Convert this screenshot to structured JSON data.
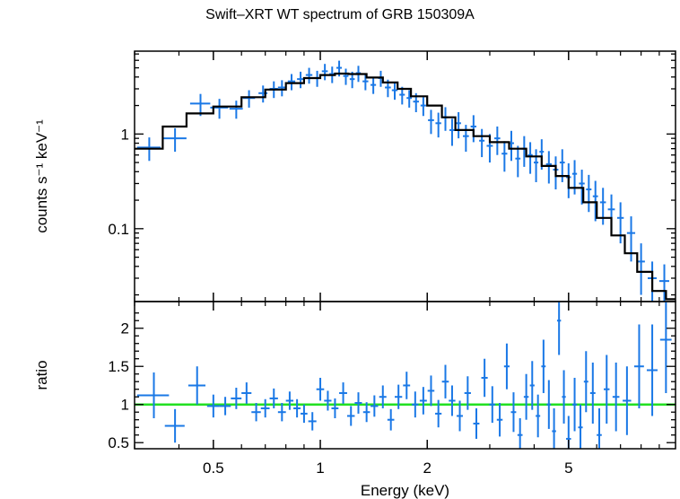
{
  "title": "Swift–XRT WT spectrum of GRB 150309A",
  "chart_data": [
    {
      "type": "scatter",
      "panel": "spectrum",
      "xlabel": "",
      "ylabel": "counts s⁻¹ keV⁻¹",
      "xscale": "log",
      "yscale": "log",
      "xlim": [
        0.3,
        10
      ],
      "ylim": [
        0.017,
        7.5
      ],
      "y_ticks": [
        0.1,
        1
      ],
      "y_tick_labels": [
        "0.1",
        "1"
      ],
      "grid": false,
      "colors": {
        "data": "#1a78e6",
        "model": "#000000"
      },
      "series": [
        {
          "role": "data",
          "x": [
            0.33,
            0.39,
            0.46,
            0.52,
            0.58,
            0.63,
            0.69,
            0.74,
            0.78,
            0.83,
            0.88,
            0.93,
            0.98,
            1.03,
            1.08,
            1.13,
            1.18,
            1.23,
            1.28,
            1.34,
            1.41,
            1.48,
            1.55,
            1.62,
            1.7,
            1.78,
            1.86,
            1.95,
            2.05,
            2.15,
            2.25,
            2.35,
            2.45,
            2.57,
            2.7,
            2.85,
            3.0,
            3.15,
            3.3,
            3.45,
            3.6,
            3.75,
            3.9,
            4.05,
            4.2,
            4.4,
            4.6,
            4.8,
            5.0,
            5.2,
            5.45,
            5.7,
            5.95,
            6.25,
            6.6,
            7.0,
            7.5,
            8.0,
            8.6,
            9.3
          ],
          "y": [
            0.72,
            0.9,
            2.1,
            1.9,
            1.85,
            2.4,
            2.7,
            3.0,
            3.1,
            3.6,
            3.8,
            4.2,
            3.9,
            4.6,
            4.3,
            5.0,
            4.1,
            3.8,
            4.4,
            3.6,
            3.3,
            3.9,
            3.1,
            2.9,
            2.6,
            2.4,
            2.2,
            2.0,
            1.4,
            1.3,
            1.5,
            1.1,
            1.3,
            0.95,
            1.2,
            0.85,
            0.75,
            0.9,
            0.62,
            0.8,
            0.55,
            0.7,
            0.6,
            0.5,
            0.65,
            0.48,
            0.42,
            0.5,
            0.35,
            0.38,
            0.3,
            0.26,
            0.22,
            0.19,
            0.16,
            0.13,
            0.09,
            0.045,
            0.03,
            0.028
          ],
          "xerr": [
            0.025,
            0.03,
            0.03,
            0.03,
            0.025,
            0.025,
            0.02,
            0.02,
            0.02,
            0.02,
            0.02,
            0.02,
            0.02,
            0.02,
            0.02,
            0.02,
            0.02,
            0.02,
            0.02,
            0.025,
            0.025,
            0.025,
            0.03,
            0.03,
            0.03,
            0.03,
            0.035,
            0.035,
            0.04,
            0.04,
            0.04,
            0.04,
            0.04,
            0.05,
            0.05,
            0.05,
            0.06,
            0.06,
            0.06,
            0.06,
            0.06,
            0.06,
            0.06,
            0.06,
            0.06,
            0.08,
            0.08,
            0.08,
            0.08,
            0.08,
            0.1,
            0.1,
            0.1,
            0.12,
            0.15,
            0.15,
            0.2,
            0.2,
            0.25,
            0.3
          ],
          "yerr": [
            0.2,
            0.25,
            0.55,
            0.45,
            0.4,
            0.5,
            0.55,
            0.6,
            0.6,
            0.7,
            0.75,
            0.8,
            0.75,
            0.9,
            0.85,
            0.95,
            0.8,
            0.75,
            0.85,
            0.7,
            0.65,
            0.75,
            0.65,
            0.6,
            0.55,
            0.5,
            0.5,
            0.45,
            0.4,
            0.38,
            0.42,
            0.35,
            0.4,
            0.3,
            0.38,
            0.28,
            0.25,
            0.3,
            0.22,
            0.28,
            0.2,
            0.25,
            0.22,
            0.19,
            0.23,
            0.18,
            0.16,
            0.19,
            0.14,
            0.15,
            0.12,
            0.11,
            0.1,
            0.08,
            0.07,
            0.06,
            0.045,
            0.025,
            0.015,
            0.014
          ]
        },
        {
          "role": "model",
          "x": [
            0.3,
            0.36,
            0.36,
            0.42,
            0.42,
            0.5,
            0.5,
            0.6,
            0.6,
            0.7,
            0.7,
            0.8,
            0.8,
            0.9,
            0.9,
            1.0,
            1.0,
            1.1,
            1.1,
            1.2,
            1.2,
            1.35,
            1.35,
            1.5,
            1.5,
            1.65,
            1.65,
            1.8,
            1.8,
            2.0,
            2.0,
            2.2,
            2.2,
            2.4,
            2.4,
            2.7,
            2.7,
            3.0,
            3.0,
            3.4,
            3.4,
            3.8,
            3.8,
            4.2,
            4.2,
            4.6,
            4.6,
            5.0,
            5.0,
            5.5,
            5.5,
            6.0,
            6.0,
            6.6,
            6.6,
            7.2,
            7.2,
            7.8,
            7.8,
            8.6,
            8.6,
            9.4,
            9.4,
            10.0
          ],
          "y": [
            0.7,
            0.7,
            1.2,
            1.2,
            1.65,
            1.65,
            1.95,
            1.95,
            2.45,
            2.45,
            2.95,
            2.95,
            3.45,
            3.45,
            3.9,
            3.9,
            4.2,
            4.2,
            4.35,
            4.35,
            4.3,
            4.3,
            3.95,
            3.95,
            3.5,
            3.5,
            3.0,
            3.0,
            2.5,
            2.5,
            2.0,
            2.0,
            1.5,
            1.5,
            1.1,
            1.1,
            0.95,
            0.95,
            0.82,
            0.82,
            0.7,
            0.7,
            0.58,
            0.58,
            0.46,
            0.46,
            0.36,
            0.36,
            0.27,
            0.27,
            0.19,
            0.19,
            0.13,
            0.13,
            0.085,
            0.085,
            0.055,
            0.055,
            0.035,
            0.035,
            0.022,
            0.022,
            0.018,
            0.018
          ]
        }
      ]
    },
    {
      "type": "scatter",
      "panel": "ratio",
      "xlabel": "Energy (keV)",
      "ylabel": "ratio",
      "xscale": "log",
      "yscale": "linear",
      "xlim": [
        0.3,
        10
      ],
      "ylim": [
        0.42,
        2.35
      ],
      "x_ticks": [
        0.5,
        1,
        2,
        5
      ],
      "x_tick_labels": [
        "0.5",
        "1",
        "2",
        "5"
      ],
      "y_ticks": [
        0.5,
        1,
        1.5,
        2
      ],
      "y_tick_labels": [
        "0.5",
        "1",
        "1.5",
        "2"
      ],
      "reference_line": {
        "y": 1,
        "color": "#22e022"
      },
      "grid": false,
      "colors": {
        "data": "#1a78e6"
      },
      "series": [
        {
          "role": "data",
          "x": [
            0.34,
            0.39,
            0.45,
            0.5,
            0.54,
            0.58,
            0.62,
            0.66,
            0.7,
            0.74,
            0.78,
            0.82,
            0.86,
            0.9,
            0.95,
            1.0,
            1.05,
            1.1,
            1.16,
            1.22,
            1.28,
            1.35,
            1.42,
            1.5,
            1.58,
            1.66,
            1.75,
            1.85,
            1.95,
            2.05,
            2.15,
            2.25,
            2.35,
            2.47,
            2.6,
            2.75,
            2.9,
            3.05,
            3.2,
            3.35,
            3.5,
            3.65,
            3.8,
            3.95,
            4.1,
            4.25,
            4.4,
            4.55,
            4.7,
            4.85,
            5.0,
            5.2,
            5.4,
            5.6,
            5.85,
            6.1,
            6.4,
            6.8,
            7.3,
            7.9,
            8.6,
            9.4
          ],
          "y": [
            1.12,
            0.72,
            1.25,
            0.98,
            0.98,
            1.08,
            1.15,
            0.9,
            0.95,
            1.08,
            0.9,
            1.05,
            0.95,
            0.88,
            0.78,
            1.2,
            1.05,
            0.95,
            1.15,
            0.85,
            1.02,
            0.9,
            0.98,
            1.1,
            0.8,
            1.1,
            1.25,
            1.0,
            1.05,
            1.18,
            0.88,
            1.3,
            1.05,
            0.85,
            1.15,
            0.75,
            1.35,
            1.0,
            0.8,
            1.5,
            0.9,
            0.6,
            1.1,
            1.25,
            0.85,
            1.5,
            1.0,
            0.65,
            2.1,
            1.1,
            0.55,
            1.0,
            0.7,
            1.3,
            1.15,
            0.6,
            1.2,
            1.1,
            1.05,
            1.5,
            1.45,
            1.85
          ],
          "xerr": [
            0.035,
            0.025,
            0.025,
            0.02,
            0.02,
            0.02,
            0.02,
            0.02,
            0.02,
            0.02,
            0.02,
            0.02,
            0.02,
            0.02,
            0.025,
            0.025,
            0.025,
            0.025,
            0.03,
            0.03,
            0.03,
            0.03,
            0.035,
            0.035,
            0.035,
            0.04,
            0.04,
            0.04,
            0.045,
            0.045,
            0.045,
            0.05,
            0.05,
            0.05,
            0.055,
            0.055,
            0.06,
            0.06,
            0.06,
            0.06,
            0.06,
            0.06,
            0.06,
            0.06,
            0.06,
            0.06,
            0.06,
            0.06,
            0.06,
            0.06,
            0.08,
            0.08,
            0.08,
            0.08,
            0.1,
            0.1,
            0.12,
            0.15,
            0.2,
            0.25,
            0.3,
            0.35
          ],
          "yerr": [
            0.3,
            0.22,
            0.25,
            0.15,
            0.12,
            0.14,
            0.14,
            0.12,
            0.12,
            0.13,
            0.12,
            0.12,
            0.12,
            0.12,
            0.12,
            0.15,
            0.13,
            0.13,
            0.14,
            0.13,
            0.14,
            0.13,
            0.14,
            0.15,
            0.14,
            0.16,
            0.18,
            0.17,
            0.18,
            0.2,
            0.18,
            0.22,
            0.2,
            0.2,
            0.22,
            0.2,
            0.25,
            0.24,
            0.22,
            0.3,
            0.26,
            0.22,
            0.3,
            0.32,
            0.28,
            0.35,
            0.32,
            0.3,
            0.45,
            0.35,
            0.3,
            0.35,
            0.3,
            0.4,
            0.4,
            0.35,
            0.45,
            0.45,
            0.45,
            0.55,
            0.6,
            0.7
          ]
        }
      ]
    }
  ]
}
